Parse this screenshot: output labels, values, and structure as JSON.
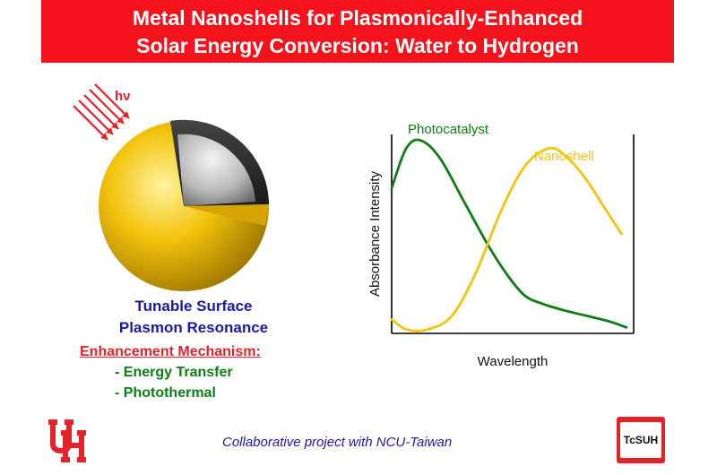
{
  "header": {
    "title_line1": "Metal Nanoshells for Plasmonically-Enhanced",
    "title_line2": "Solar Energy Conversion: Water to Hydrogen"
  },
  "illustration": {
    "light_label": "hν"
  },
  "left_text": {
    "line1": "Tunable Surface",
    "line2": "Plasmon Resonance",
    "mechanism_title": "Enhancement Mechanism:",
    "mechanisms": [
      "- Energy Transfer",
      "- Photothermal"
    ]
  },
  "footer": {
    "collab": "Collaborative project with NCU-Taiwan",
    "logo_left": "UH",
    "logo_right": "TcSUH"
  },
  "colors": {
    "banner": "#f4121c",
    "photocatalyst": "#0e7d16",
    "nanoshell": "#f2c40c",
    "blue_text": "#1a1aa6",
    "red_text": "#e4222a"
  },
  "chart_data": {
    "type": "line",
    "xlabel": "Wavelength",
    "ylabel": "Absorbance Intensity",
    "xlim": [
      0,
      1
    ],
    "ylim": [
      0,
      1
    ],
    "series": [
      {
        "name": "Photocatalyst",
        "x": [
          0.0,
          0.06,
          0.12,
          0.2,
          0.3,
          0.4,
          0.48,
          0.55,
          0.62,
          0.7,
          0.8,
          0.9,
          0.97
        ],
        "y": [
          0.73,
          0.93,
          0.97,
          0.88,
          0.66,
          0.44,
          0.29,
          0.19,
          0.15,
          0.12,
          0.09,
          0.06,
          0.03
        ]
      },
      {
        "name": "Nanoshell",
        "x": [
          0.0,
          0.06,
          0.15,
          0.25,
          0.35,
          0.45,
          0.55,
          0.65,
          0.72,
          0.8,
          0.88,
          0.95
        ],
        "y": [
          0.07,
          0.02,
          0.02,
          0.09,
          0.31,
          0.61,
          0.84,
          0.93,
          0.89,
          0.78,
          0.63,
          0.5
        ]
      }
    ]
  }
}
